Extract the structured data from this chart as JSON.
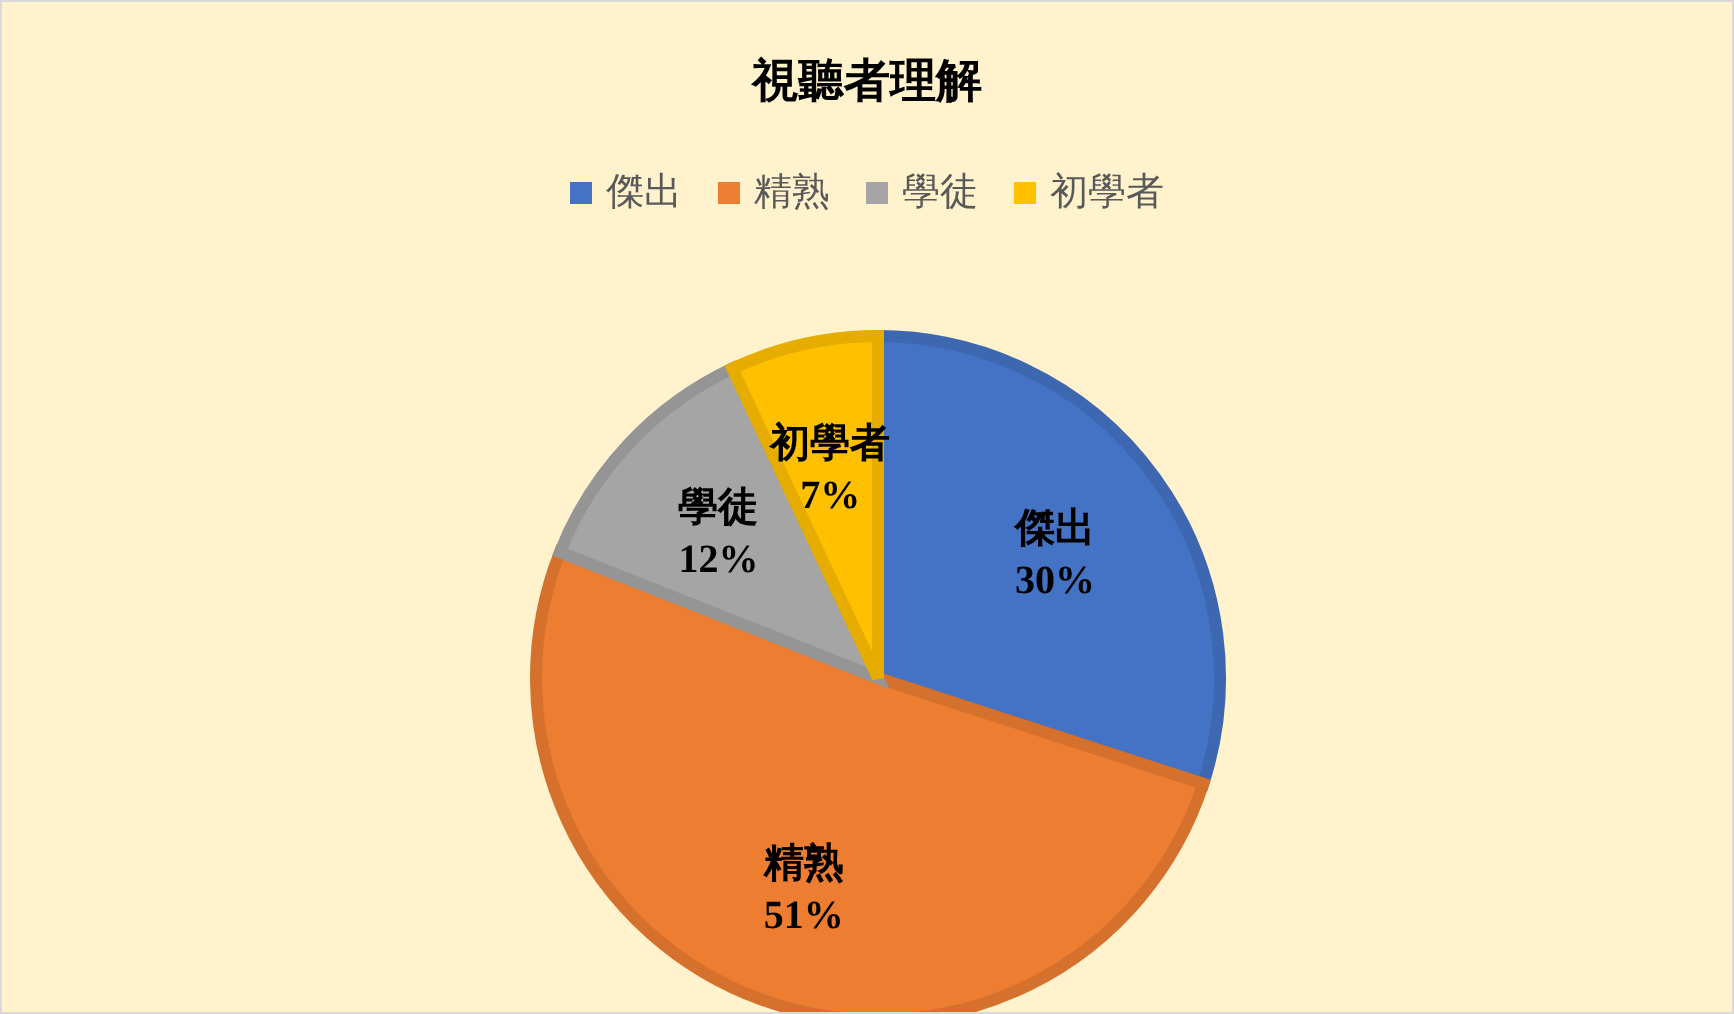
{
  "chart_data": {
    "type": "pie",
    "title": "視聽者理解",
    "categories": [
      "傑出",
      "精熟",
      "學徒",
      "初學者"
    ],
    "values": [
      30,
      51,
      12,
      7
    ],
    "colors": [
      "#4472c4",
      "#ed7d31",
      "#a5a5a5",
      "#ffc000"
    ],
    "value_labels": [
      "30%",
      "51%",
      "12%",
      "7%"
    ],
    "legend": "top"
  }
}
